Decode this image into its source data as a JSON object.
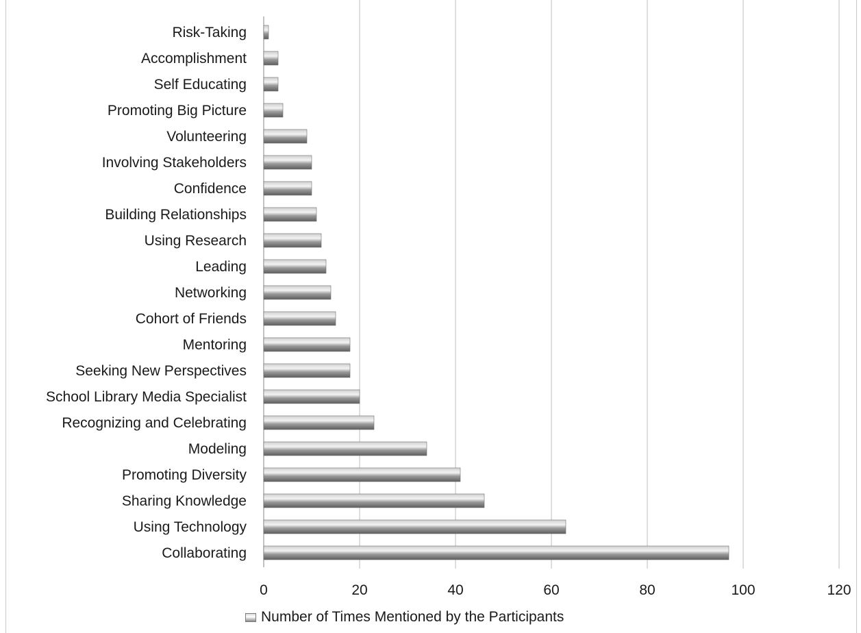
{
  "chart_data": {
    "type": "bar",
    "orientation": "horizontal",
    "categories": [
      "Collaborating",
      "Using Technology",
      "Sharing Knowledge",
      "Promoting Diversity",
      "Modeling",
      "Recognizing and Celebrating",
      "School Library Media Specialist",
      "Seeking New Perspectives",
      "Mentoring",
      "Cohort of Friends",
      "Networking",
      "Leading",
      "Using Research",
      "Building Relationships",
      "Confidence",
      "Involving Stakeholders",
      "Volunteering",
      "Promoting Big Picture",
      "Self Educating",
      "Accomplishment",
      "Risk-Taking"
    ],
    "series": [
      {
        "name": "Number of Times Mentioned by the Participants",
        "values": [
          97,
          63,
          46,
          41,
          34,
          23,
          20,
          18,
          18,
          15,
          14,
          13,
          12,
          11,
          10,
          10,
          9,
          4,
          3,
          3,
          1
        ]
      }
    ],
    "xlim": [
      0,
      120
    ],
    "xticks": [
      "0",
      "20",
      "40",
      "60",
      "80",
      "100",
      "120"
    ],
    "grid": "vertical",
    "legend_position": "bottom",
    "bar_color": "#8c8c8c"
  }
}
